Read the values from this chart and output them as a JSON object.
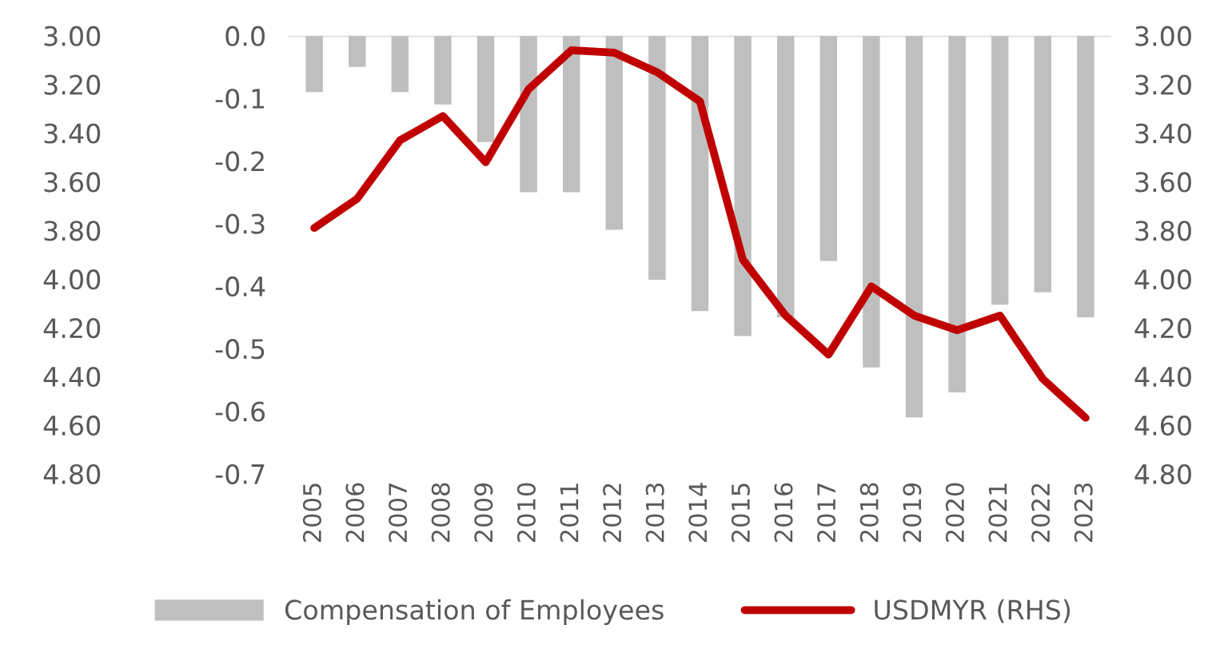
{
  "chart_data": {
    "type": "bar",
    "categories": [
      "2005",
      "2006",
      "2007",
      "2008",
      "2009",
      "2010",
      "2011",
      "2012",
      "2013",
      "2014",
      "2015",
      "2016",
      "2017",
      "2018",
      "2019",
      "2020",
      "2021",
      "2022",
      "2023"
    ],
    "series": [
      {
        "name": "Compensation of Employees",
        "color": "#bfbfbf",
        "values": [
          -0.09,
          -0.05,
          -0.09,
          -0.11,
          -0.17,
          -0.25,
          -0.25,
          -0.31,
          -0.39,
          -0.44,
          -0.48,
          -0.45,
          -0.36,
          -0.53,
          -0.61,
          -0.57,
          -0.43,
          -0.41,
          -0.45
        ]
      },
      {
        "name": "USDMYR (RHS)",
        "type": "line",
        "axis": "y2",
        "color": "#c00000",
        "values": [
          3.79,
          3.67,
          3.43,
          3.33,
          3.52,
          3.22,
          3.06,
          3.07,
          3.15,
          3.27,
          3.92,
          4.15,
          4.31,
          4.03,
          4.15,
          4.21,
          4.15,
          4.41,
          4.57
        ]
      }
    ],
    "ylim": [
      -0.7,
      0.0
    ],
    "yticks": [
      {
        "value": 0.0,
        "label": "0.0"
      },
      -0.1,
      -0.2,
      -0.3,
      -0.4,
      -0.5,
      -0.6,
      -0.7
    ],
    "y2lim": [
      4.8,
      3.0
    ],
    "y2ticks": [
      {
        "value": 3.0,
        "label": "3.00"
      },
      {
        "value": 3.2,
        "label": "3.20"
      },
      {
        "value": 3.4,
        "label": "3.40"
      },
      {
        "value": 3.6,
        "label": "3.60"
      },
      {
        "value": 3.8,
        "label": "3.80"
      },
      {
        "value": 4.0,
        "label": "4.00"
      },
      {
        "value": 4.2,
        "label": "4.20"
      },
      {
        "value": 4.4,
        "label": "4.40"
      },
      {
        "value": 4.6,
        "label": "4.60"
      },
      {
        "value": 4.8,
        "label": "4.80"
      }
    ],
    "y3lim": [
      4.8,
      3.0
    ],
    "y3ticks": [
      {
        "value": 3.0,
        "label": "3.00"
      },
      {
        "value": 3.2,
        "label": "3.20"
      },
      {
        "value": 3.4,
        "label": "3.40"
      },
      {
        "value": 3.6,
        "label": "3.60"
      },
      {
        "value": 3.8,
        "label": "3.80"
      },
      {
        "value": 4.0,
        "label": "4.00"
      },
      {
        "value": 4.2,
        "label": "4.20"
      },
      {
        "value": 4.4,
        "label": "4.40"
      },
      {
        "value": 4.6,
        "label": "4.60"
      },
      {
        "value": 4.8,
        "label": "4.80"
      }
    ],
    "grid": false,
    "legend": "bottom",
    "marker": "none",
    "line_style": "solid"
  }
}
